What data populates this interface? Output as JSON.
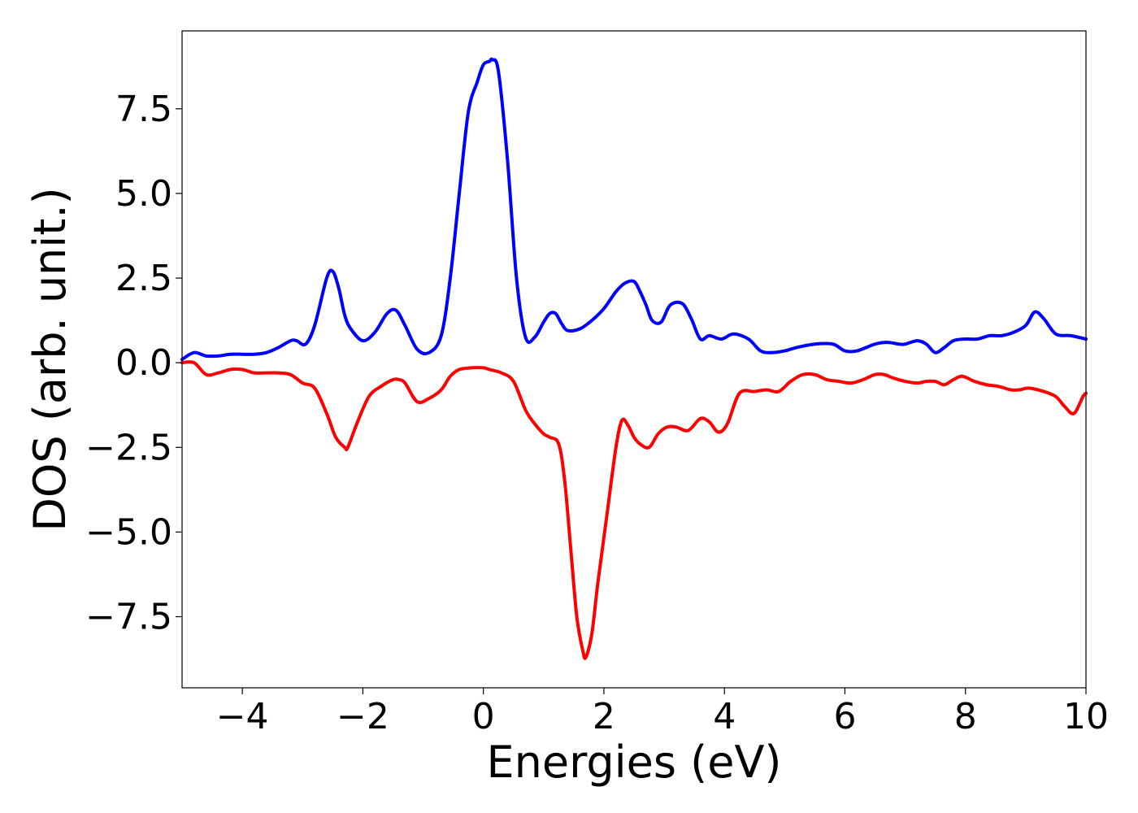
{
  "chart_data": {
    "type": "line",
    "xlabel": "Energies (eV)",
    "ylabel": "DOS (arb. unit.)",
    "xlim": [
      -5,
      10
    ],
    "ylim": [
      -9.6,
      9.8
    ],
    "xticks": [
      -4,
      -2,
      0,
      2,
      4,
      6,
      8,
      10
    ],
    "xtick_labels": [
      "−4",
      "−2",
      "0",
      "2",
      "4",
      "6",
      "8",
      "10"
    ],
    "yticks": [
      7.5,
      5.0,
      2.5,
      0.0,
      -2.5,
      -5.0,
      -7.5
    ],
    "ytick_labels": [
      "7.5",
      "5.0",
      "2.5",
      "0.0",
      "−2.5",
      "−5.0",
      "−7.5"
    ],
    "grid": false,
    "series": [
      {
        "color": "#0000ff",
        "x": [
          -5.0,
          -4.8,
          -4.6,
          -4.4,
          -4.2,
          -4.0,
          -3.8,
          -3.6,
          -3.4,
          -3.2,
          -3.1,
          -2.95,
          -2.8,
          -2.6,
          -2.5,
          -2.4,
          -2.3,
          -2.2,
          -2.0,
          -1.8,
          -1.6,
          -1.45,
          -1.3,
          -1.1,
          -0.9,
          -0.7,
          -0.55,
          -0.4,
          -0.25,
          -0.1,
          0.0,
          0.1,
          0.15,
          0.25,
          0.4,
          0.55,
          0.7,
          0.85,
          1.0,
          1.1,
          1.2,
          1.3,
          1.4,
          1.6,
          1.8,
          2.0,
          2.2,
          2.35,
          2.5,
          2.6,
          2.7,
          2.8,
          2.95,
          3.1,
          3.3,
          3.45,
          3.6,
          3.75,
          3.95,
          4.15,
          4.4,
          4.6,
          4.8,
          5.0,
          5.2,
          5.5,
          5.8,
          6.0,
          6.2,
          6.5,
          6.7,
          6.9,
          7.0,
          7.2,
          7.35,
          7.5,
          7.65,
          7.8,
          8.0,
          8.2,
          8.4,
          8.6,
          8.8,
          9.0,
          9.15,
          9.3,
          9.5,
          9.75,
          10.0
        ],
        "values": [
          0.1,
          0.3,
          0.2,
          0.2,
          0.25,
          0.25,
          0.25,
          0.3,
          0.45,
          0.65,
          0.65,
          0.55,
          1.1,
          2.5,
          2.7,
          2.2,
          1.4,
          1.0,
          0.65,
          0.9,
          1.45,
          1.55,
          1.1,
          0.4,
          0.3,
          0.8,
          2.5,
          5.0,
          7.4,
          8.3,
          8.8,
          8.9,
          8.95,
          8.6,
          6.0,
          2.5,
          0.75,
          0.75,
          1.2,
          1.45,
          1.45,
          1.15,
          0.95,
          1.0,
          1.25,
          1.6,
          2.1,
          2.35,
          2.4,
          2.1,
          1.7,
          1.25,
          1.2,
          1.7,
          1.75,
          1.3,
          0.7,
          0.8,
          0.7,
          0.85,
          0.7,
          0.35,
          0.3,
          0.35,
          0.45,
          0.55,
          0.55,
          0.35,
          0.35,
          0.55,
          0.6,
          0.55,
          0.55,
          0.65,
          0.55,
          0.3,
          0.45,
          0.65,
          0.7,
          0.7,
          0.8,
          0.8,
          0.9,
          1.1,
          1.5,
          1.3,
          0.85,
          0.8,
          0.7
        ]
      },
      {
        "color": "#ff0000",
        "x": [
          -5.0,
          -4.8,
          -4.6,
          -4.4,
          -4.2,
          -4.0,
          -3.8,
          -3.6,
          -3.4,
          -3.2,
          -3.0,
          -2.8,
          -2.6,
          -2.45,
          -2.3,
          -2.25,
          -2.1,
          -1.9,
          -1.7,
          -1.5,
          -1.4,
          -1.3,
          -1.1,
          -0.9,
          -0.7,
          -0.55,
          -0.4,
          -0.2,
          0.0,
          0.1,
          0.3,
          0.5,
          0.7,
          0.85,
          1.0,
          1.1,
          1.25,
          1.35,
          1.45,
          1.55,
          1.65,
          1.7,
          1.8,
          1.9,
          2.05,
          2.2,
          2.3,
          2.4,
          2.5,
          2.6,
          2.75,
          2.9,
          3.05,
          3.2,
          3.4,
          3.6,
          3.75,
          3.9,
          4.05,
          4.25,
          4.5,
          4.7,
          4.9,
          5.1,
          5.3,
          5.5,
          5.7,
          5.9,
          6.1,
          6.3,
          6.5,
          6.65,
          6.8,
          7.0,
          7.2,
          7.35,
          7.5,
          7.65,
          7.8,
          7.95,
          8.15,
          8.35,
          8.55,
          8.75,
          8.9,
          9.05,
          9.3,
          9.5,
          9.65,
          9.8,
          9.95,
          10.0
        ],
        "values": [
          0.0,
          0.0,
          -0.35,
          -0.3,
          -0.2,
          -0.2,
          -0.3,
          -0.3,
          -0.3,
          -0.35,
          -0.6,
          -0.75,
          -1.5,
          -2.2,
          -2.5,
          -2.5,
          -1.8,
          -1.0,
          -0.7,
          -0.5,
          -0.5,
          -0.6,
          -1.15,
          -1.05,
          -0.8,
          -0.4,
          -0.2,
          -0.15,
          -0.15,
          -0.2,
          -0.3,
          -0.55,
          -1.4,
          -1.8,
          -2.1,
          -2.2,
          -2.4,
          -3.5,
          -5.5,
          -7.5,
          -8.5,
          -8.7,
          -8.0,
          -6.5,
          -4.5,
          -2.5,
          -1.7,
          -1.85,
          -2.2,
          -2.4,
          -2.5,
          -2.1,
          -1.9,
          -1.9,
          -2.0,
          -1.65,
          -1.75,
          -2.05,
          -1.8,
          -0.9,
          -0.85,
          -0.8,
          -0.85,
          -0.55,
          -0.35,
          -0.35,
          -0.5,
          -0.55,
          -0.6,
          -0.5,
          -0.35,
          -0.35,
          -0.45,
          -0.55,
          -0.6,
          -0.55,
          -0.55,
          -0.65,
          -0.5,
          -0.4,
          -0.55,
          -0.65,
          -0.7,
          -0.8,
          -0.8,
          -0.75,
          -0.85,
          -1.0,
          -1.3,
          -1.5,
          -1.0,
          -0.9
        ]
      }
    ]
  }
}
